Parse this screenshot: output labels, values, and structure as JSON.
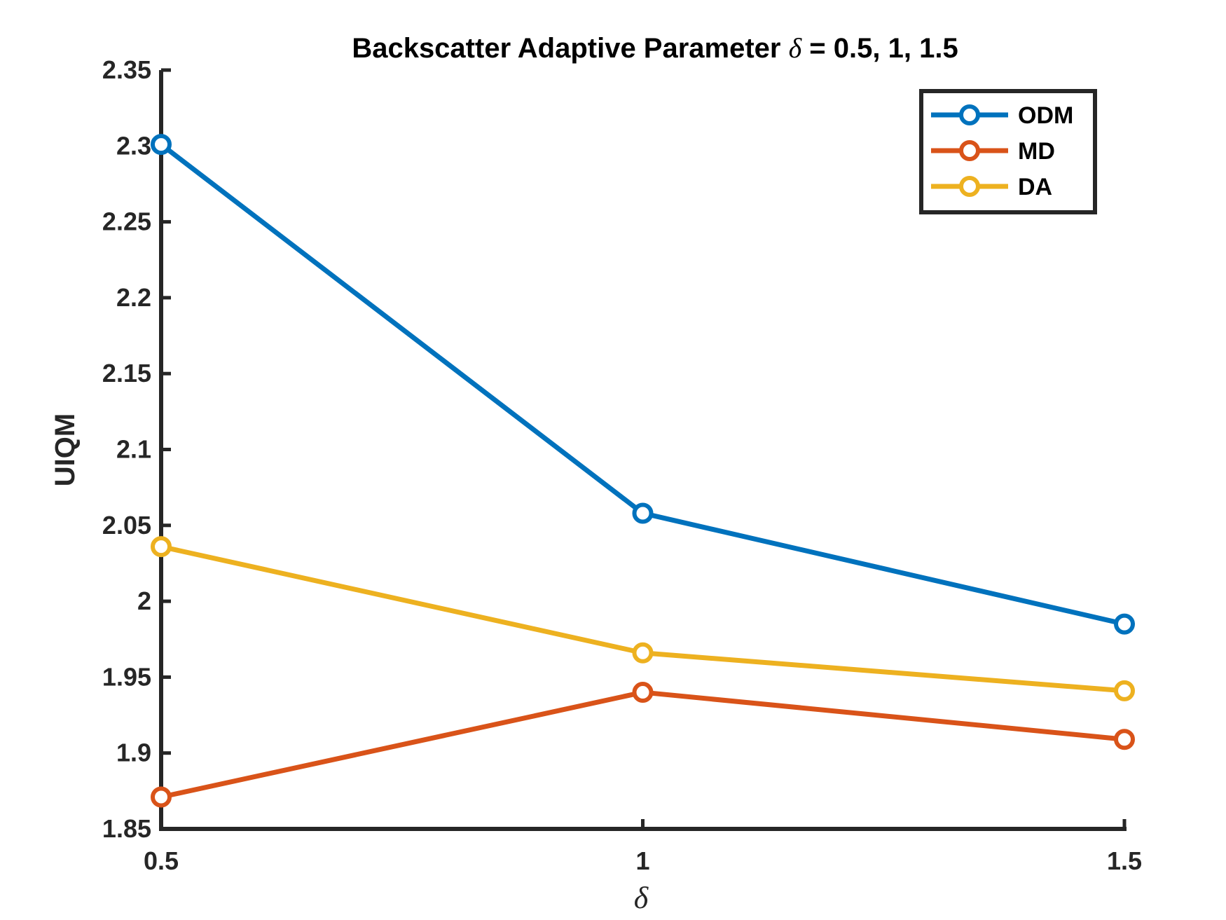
{
  "chart_data": {
    "type": "line",
    "title_prefix": "Backscatter Adaptive Parameter ",
    "title_symbol": "δ",
    "title_suffix": " = 0.5, 1, 1.5",
    "xlabel": "δ",
    "ylabel": "UIQM",
    "x": [
      0.5,
      1,
      1.5
    ],
    "x_tick_labels": [
      "0.5",
      "1",
      "1.5"
    ],
    "xlim": [
      0.5,
      1.5
    ],
    "ylim": [
      1.85,
      2.35
    ],
    "y_ticks": [
      1.85,
      1.9,
      1.95,
      2,
      2.05,
      2.1,
      2.15,
      2.2,
      2.25,
      2.3,
      2.35
    ],
    "y_tick_labels": [
      "1.85",
      "1.9",
      "1.95",
      "2",
      "2.05",
      "2.1",
      "2.15",
      "2.2",
      "2.25",
      "2.3",
      "2.35"
    ],
    "grid": false,
    "legend_position": "top-right",
    "series": [
      {
        "name": "ODM",
        "color": "#0072BD",
        "values": [
          2.301,
          2.058,
          1.985
        ]
      },
      {
        "name": "MD",
        "color": "#D95319",
        "values": [
          1.871,
          1.94,
          1.909
        ]
      },
      {
        "name": "DA",
        "color": "#EDB120",
        "values": [
          2.036,
          1.966,
          1.941
        ]
      }
    ]
  }
}
